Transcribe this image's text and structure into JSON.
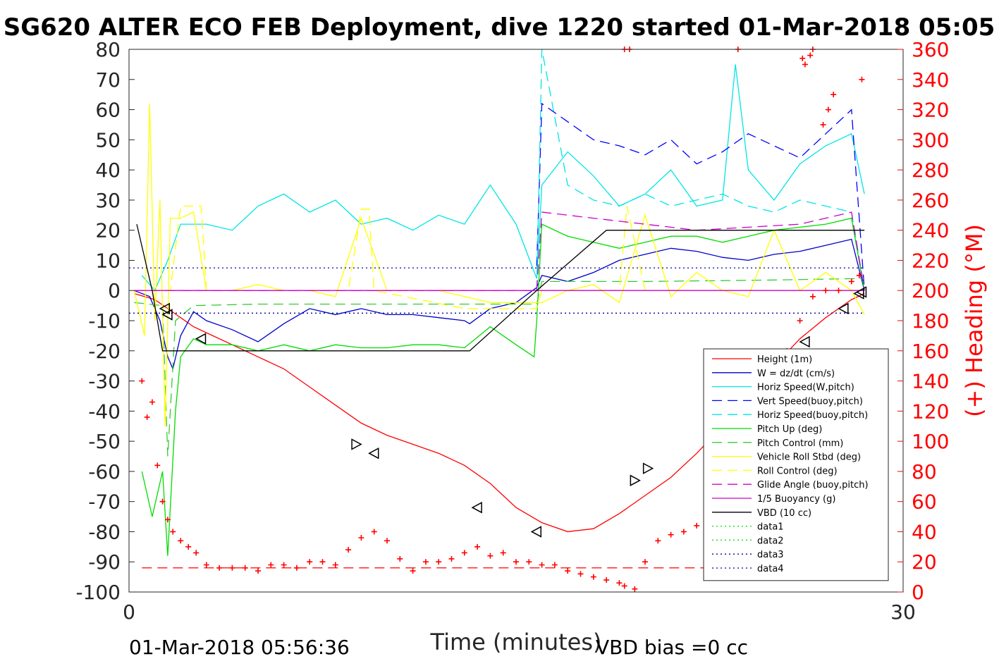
{
  "chart_data": {
    "type": "line",
    "title": "SG620 ALTER ECO FEB Deployment, dive 1220 started 01-Mar-2018 05:05",
    "xlabel": "Time (minutes)",
    "ylabel_right": "(+) Heading (°M)",
    "xlim": [
      0,
      30
    ],
    "ylim": [
      -100,
      80
    ],
    "ylim_right": [
      0,
      360
    ],
    "x_ticks": [
      "0",
      "30"
    ],
    "y_ticks": [
      "80",
      "70",
      "60",
      "50",
      "40",
      "30",
      "20",
      "10",
      "0",
      "-10",
      "-20",
      "-30",
      "-40",
      "-50",
      "-60",
      "-70",
      "-80",
      "-90",
      "-100"
    ],
    "y_ticks_right": [
      "360",
      "340",
      "320",
      "300",
      "280",
      "260",
      "240",
      "220",
      "200",
      "180",
      "160",
      "140",
      "120",
      "100",
      "80",
      "60",
      "40",
      "20",
      "0"
    ],
    "footer_left": "01-Mar-2018 05:56:36",
    "footer_right": "VBD bias =0 cc",
    "legend_position": "lower-right",
    "colors": {
      "red": "#ff0000",
      "blue": "#0000cc",
      "cyan": "#00e5e5",
      "dblue": "#0000ff",
      "green": "#00dd00",
      "lgreen": "#33cc33",
      "yellow": "#ffff00",
      "magenta": "#cc00cc",
      "black": "#000000",
      "dgreen": "#009900"
    },
    "series": [
      {
        "name": "Height (1m)",
        "color": "#ff0000",
        "dash": "",
        "x": [
          0.2,
          1,
          1.5,
          2,
          2.5,
          3,
          4,
          5,
          6,
          7,
          8,
          9,
          10,
          11,
          12,
          13,
          14,
          15,
          16,
          17,
          18,
          19,
          20,
          21,
          22,
          23,
          24,
          25,
          26,
          27,
          28,
          28.5
        ],
        "y": [
          -1,
          -3,
          -6,
          -9,
          -12,
          -14,
          -18,
          -22,
          -26,
          -32,
          -38,
          -44,
          -48,
          -51,
          -54,
          -58,
          -64,
          -72,
          -77,
          -80,
          -79,
          -74,
          -68,
          -62,
          -54,
          -45,
          -35,
          -25,
          -16,
          -9,
          -3,
          -1
        ]
      },
      {
        "name": "W = dz/dt (cm/s)",
        "color": "#0000cc",
        "dash": "",
        "x": [
          0.2,
          0.8,
          1.2,
          1.5,
          1.7,
          2,
          2.5,
          3,
          4,
          5,
          6,
          7,
          8,
          9,
          10,
          11,
          12,
          13,
          13.2,
          14,
          15,
          15.8,
          16,
          17,
          18,
          19,
          20,
          21,
          22,
          23,
          24,
          25,
          26,
          27,
          28,
          28.5
        ],
        "y": [
          0,
          -2,
          -10,
          -22,
          -26,
          -15,
          -7,
          -10,
          -13,
          -17,
          -11,
          -6,
          -8,
          -6,
          -8,
          -8,
          -9,
          -10,
          -11,
          -6,
          -4,
          1,
          5,
          3,
          6,
          10,
          12,
          14,
          13,
          11,
          10,
          12,
          13,
          15,
          17,
          0
        ]
      },
      {
        "name": "Horiz Speed(W,pitch)",
        "color": "#00e5e5",
        "dash": "",
        "x": [
          0.5,
          1,
          1.5,
          2,
          3,
          4,
          5,
          6,
          7,
          8,
          9,
          10,
          11,
          12,
          13,
          14,
          15,
          15.8,
          16,
          17,
          18,
          19,
          20,
          21,
          22,
          23,
          23.5,
          24,
          25,
          26,
          27,
          28,
          28.5
        ],
        "y": [
          5,
          0,
          10,
          22,
          22,
          20,
          28,
          32,
          26,
          30,
          22,
          24,
          20,
          25,
          22,
          35,
          22,
          4,
          35,
          46,
          38,
          28,
          32,
          40,
          28,
          30,
          75,
          40,
          30,
          42,
          48,
          52,
          32
        ]
      },
      {
        "name": "Vert Speed(buoy,pitch)",
        "color": "#0000ff",
        "dash": "14,8",
        "x": [
          15.8,
          16,
          17,
          18,
          19,
          20,
          21,
          22,
          23,
          24,
          25,
          26,
          27,
          28,
          28.5
        ],
        "y": [
          8,
          62,
          56,
          50,
          48,
          45,
          50,
          42,
          46,
          52,
          48,
          44,
          52,
          60,
          0
        ]
      },
      {
        "name": "Horiz Speed(buoy,pitch)",
        "color": "#00e5e5",
        "dash": "14,8",
        "x": [
          15.8,
          16,
          17,
          18,
          19,
          20,
          21,
          22,
          23,
          24,
          25,
          26,
          27,
          28,
          28.5
        ],
        "y": [
          0,
          80,
          35,
          30,
          28,
          32,
          28,
          30,
          32,
          28,
          26,
          30,
          28,
          26,
          0
        ]
      },
      {
        "name": "Pitch Up (deg)",
        "color": "#00dd00",
        "dash": "",
        "x": [
          0.5,
          0.9,
          1.3,
          1.5,
          1.8,
          2,
          2.5,
          3,
          4,
          5,
          6,
          7,
          8,
          9,
          10,
          11,
          12,
          13,
          14,
          15,
          15.7,
          15.8,
          16,
          17,
          18,
          19,
          20,
          21,
          22,
          23,
          24,
          25,
          26,
          27,
          28,
          28.5
        ],
        "y": [
          -60,
          -75,
          -60,
          -88,
          -40,
          -22,
          -16,
          -18,
          -18,
          -20,
          -18,
          -20,
          -18,
          -19,
          -19,
          -18,
          -18,
          -19,
          -12,
          -18,
          -22,
          -10,
          22,
          18,
          16,
          14,
          16,
          18,
          18,
          16,
          18,
          20,
          21,
          22,
          24,
          0
        ]
      },
      {
        "name": "Pitch Control (mm)",
        "color": "#33cc33",
        "dash": "14,8",
        "x": [
          0.2,
          1.3,
          1.5,
          1.8,
          2.5,
          5,
          10,
          15.8,
          16,
          20,
          25,
          28.5
        ],
        "y": [
          -4,
          -5,
          -55,
          -10,
          -5,
          -4.5,
          -4.5,
          -4.5,
          3,
          3,
          3.5,
          4
        ]
      },
      {
        "name": "Vehicle Roll Stbd (deg)",
        "color": "#ffff00",
        "dash": "",
        "x": [
          0.2,
          0.6,
          0.8,
          1,
          1.2,
          1.4,
          1.6,
          2,
          2.5,
          3,
          4,
          5,
          6,
          7,
          8,
          9,
          10,
          11,
          12,
          13,
          14,
          15,
          16,
          17,
          18,
          19,
          20,
          21,
          22,
          23,
          24,
          25,
          26,
          27,
          28,
          28.5
        ],
        "y": [
          0,
          -15,
          62,
          -10,
          30,
          -45,
          24,
          24,
          26,
          0,
          0,
          2,
          0,
          0,
          -2,
          24,
          0,
          0,
          0,
          -2,
          -4,
          -4,
          -4,
          0,
          2,
          -4,
          25,
          -2,
          6,
          0,
          -2,
          20,
          0,
          6,
          0,
          -8
        ]
      },
      {
        "name": "Roll Control (deg)",
        "color": "#ffff00",
        "dash": "14,8",
        "x": [
          0.2,
          1.6,
          2,
          2.8,
          3,
          8.5,
          9,
          9.3,
          9.5,
          13,
          15.8,
          16,
          19,
          19.3,
          20,
          25,
          28.5
        ],
        "y": [
          0,
          0,
          28,
          28,
          0,
          0,
          27,
          27,
          0,
          -6,
          -6,
          0,
          0,
          28,
          0,
          0,
          0
        ]
      },
      {
        "name": "Glide Angle (buoy,pitch)",
        "color": "#cc00cc",
        "dash": "14,8",
        "x": [
          0.2,
          15.8,
          16,
          18,
          20,
          22,
          24,
          26,
          28,
          28.5
        ],
        "y": [
          0,
          0,
          26,
          24,
          22,
          20,
          21,
          22,
          26,
          0
        ]
      },
      {
        "name": "1/5 Buoyancy (g)",
        "color": "#cc00cc",
        "dash": "",
        "x": [
          0.2,
          15.8,
          16,
          28.5
        ],
        "y": [
          0,
          0,
          0,
          0
        ]
      },
      {
        "name": "VBD (10 cc)",
        "color": "#000000",
        "dash": "",
        "x": [
          0.3,
          0.9,
          1.3,
          2,
          13.2,
          15.8,
          18.5,
          28.5
        ],
        "y": [
          22,
          0,
          -20,
          -20,
          -20,
          0,
          20,
          20
        ]
      },
      {
        "name": "data1",
        "color": "#00dd00",
        "dash": "2,4",
        "x": [],
        "y": []
      },
      {
        "name": "data2",
        "color": "#00dd00",
        "dash": "2,4",
        "x": [],
        "y": []
      },
      {
        "name": "data3",
        "color": "#000099",
        "dash": "2,4",
        "x": [
          0,
          28.5
        ],
        "y": [
          7.5,
          7.5
        ]
      },
      {
        "name": "data4",
        "color": "#000099",
        "dash": "2,4",
        "x": [
          0,
          28.5
        ],
        "y": [
          -7.5,
          -7.5
        ]
      }
    ],
    "heading_reference": {
      "color": "#ff0000",
      "dash": "14,8",
      "x": [
        0.5,
        28.5
      ],
      "y": [
        -92,
        -92
      ]
    },
    "heading": {
      "color": "#ff0000",
      "marker": "+",
      "x": [
        0.5,
        0.7,
        0.9,
        1.1,
        1.3,
        1.5,
        1.7,
        2,
        2.3,
        2.6,
        3,
        3.5,
        4,
        4.5,
        5,
        5.5,
        6,
        6.5,
        7,
        7.5,
        8,
        8.5,
        9,
        9.5,
        10,
        10.5,
        11,
        11.5,
        12,
        12.5,
        13,
        13.5,
        14,
        14.5,
        15,
        15.5,
        16,
        16.5,
        17,
        17.5,
        18,
        18.5,
        19,
        19.2,
        19.6,
        20,
        20.5,
        21,
        21.5,
        22,
        22.5,
        23,
        23.5,
        24,
        24.5,
        25,
        25.5,
        26,
        26.5,
        27,
        27.5,
        28,
        28.3
      ],
      "y": [
        140,
        116,
        126,
        84,
        60,
        48,
        40,
        34,
        30,
        26,
        18,
        16,
        16,
        16,
        14,
        18,
        18,
        16,
        20,
        20,
        18,
        28,
        36,
        40,
        34,
        22,
        14,
        20,
        20,
        22,
        26,
        30,
        24,
        26,
        20,
        20,
        18,
        18,
        14,
        12,
        10,
        8,
        6,
        4,
        2,
        20,
        34,
        38,
        40,
        44,
        46,
        54,
        72,
        112,
        124,
        140,
        160,
        180,
        196,
        200,
        200,
        206,
        210
      ]
    },
    "heading_outliers": {
      "x": [
        19.2,
        19.4,
        23.6,
        26.1,
        26.2,
        26.4,
        26.5,
        26.9,
        27.1,
        27.3,
        28.4
      ],
      "y": [
        360,
        360,
        360,
        354,
        350,
        356,
        360,
        310,
        320,
        330,
        340
      ]
    },
    "event_markers": {
      "x": [
        1.4,
        1.5,
        2.8,
        8.8,
        9.5,
        13.5,
        15.8,
        19.6,
        20.1,
        26.2,
        27.7,
        28.3,
        28.4
      ],
      "y": [
        -6,
        -8,
        -16,
        -51,
        -54,
        -72,
        -80,
        -63,
        -59,
        -17,
        -6,
        -1,
        -0.5
      ],
      "dir": [
        "left",
        "left",
        "left",
        "right",
        "left",
        "left",
        "left",
        "right",
        "right",
        "left",
        "left",
        "left",
        "left"
      ]
    }
  }
}
